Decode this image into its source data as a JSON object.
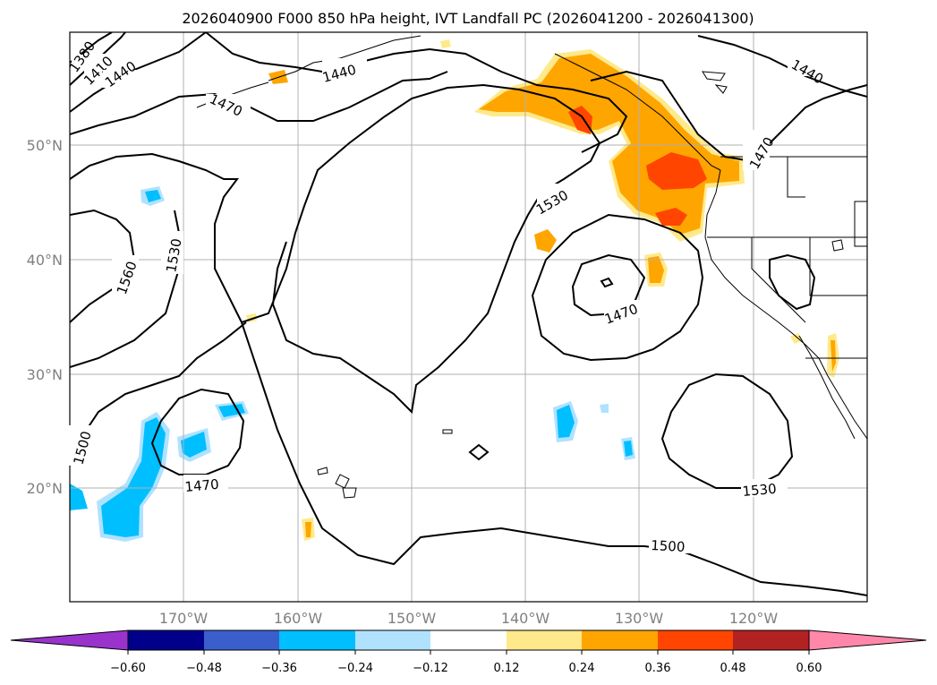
{
  "title": "2026040900 F000 850 hPa height, IVT Landfall PC (2026041200 - 2026041300)",
  "lat_labels": [
    "50°N",
    "40°N",
    "30°N",
    "20°N"
  ],
  "lon_labels": [
    "170°W",
    "160°W",
    "150°W",
    "140°W",
    "130°W",
    "120°W"
  ],
  "contour_labels": [
    "1380",
    "1410",
    "1440",
    "1440",
    "1440",
    "1470",
    "1470",
    "1470",
    "1470",
    "1500",
    "1500",
    "1530",
    "1530",
    "1530",
    "1560"
  ],
  "colorbar": {
    "ticks": [
      "−0.60",
      "−0.48",
      "−0.36",
      "−0.24",
      "−0.12",
      "0.12",
      "0.24",
      "0.36",
      "0.48",
      "0.60"
    ],
    "colors": [
      "#9933cc",
      "#00008b",
      "#3a5fcd",
      "#00bfff",
      "#b0e2ff",
      "#ffffff",
      "#ffe98a",
      "#ffa500",
      "#ff4500",
      "#b22222",
      "#ff88aa"
    ]
  }
}
